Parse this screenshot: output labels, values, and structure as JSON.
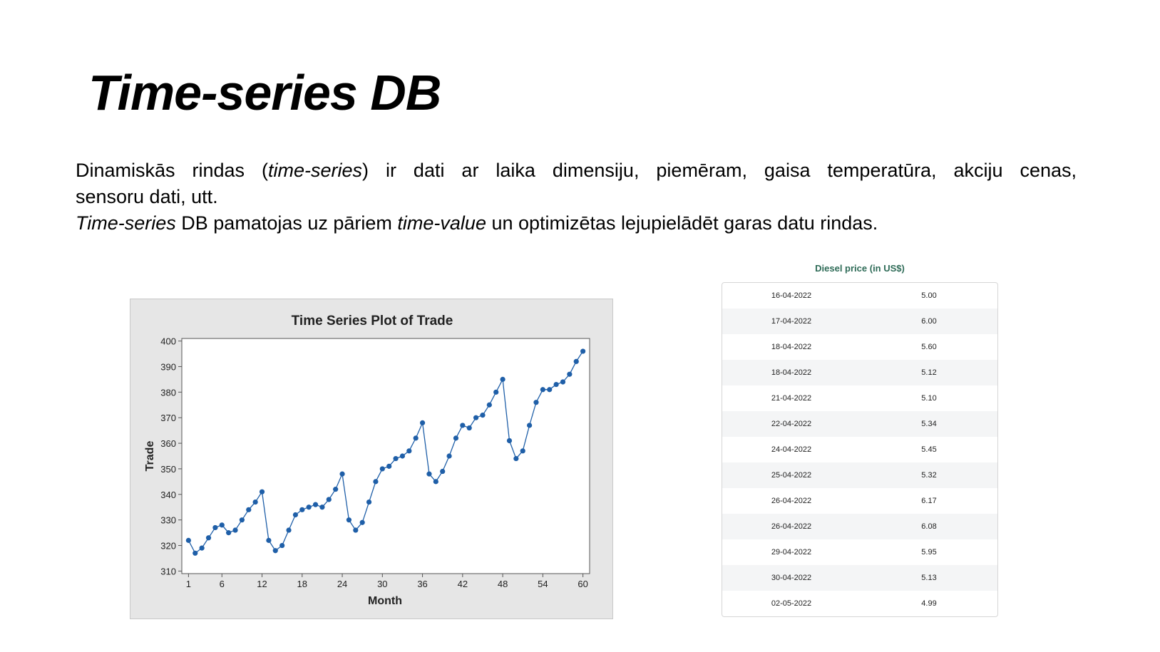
{
  "slide": {
    "title": "Time-series DB",
    "intro": {
      "l1_a": "Dinamiskās rindas (",
      "l1_b": "time-series",
      "l1_c": ") ir dati ar laika dimensiju, piemēram, gaisa temperatūra, akciju cenas,",
      "l2": "sensoru dati, utt.",
      "l3_a": "Time-series",
      "l3_b": " DB pamatojas uz pāriem ",
      "l3_c": "time-value",
      "l3_d": " un optimizētas lejupielādēt garas datu rindas."
    }
  },
  "chart_data": {
    "type": "line",
    "title": "Time Series Plot of Trade",
    "xlabel": "Month",
    "ylabel": "Trade",
    "xlim": [
      0,
      61
    ],
    "ylim": [
      309,
      401
    ],
    "xticks": [
      1,
      6,
      12,
      18,
      24,
      30,
      36,
      42,
      48,
      54,
      60
    ],
    "yticks": [
      310,
      320,
      330,
      340,
      350,
      360,
      370,
      380,
      390,
      400
    ],
    "grid": false,
    "color": "#1f5fa8",
    "x": [
      1,
      2,
      3,
      4,
      5,
      6,
      7,
      8,
      9,
      10,
      11,
      12,
      13,
      14,
      15,
      16,
      17,
      18,
      19,
      20,
      21,
      22,
      23,
      24,
      25,
      26,
      27,
      28,
      29,
      30,
      31,
      32,
      33,
      34,
      35,
      36,
      37,
      38,
      39,
      40,
      41,
      42,
      43,
      44,
      45,
      46,
      47,
      48,
      49,
      50,
      51,
      52,
      53,
      54,
      55,
      56,
      57,
      58,
      59,
      60
    ],
    "values": [
      322,
      317,
      319,
      323,
      327,
      328,
      325,
      326,
      330,
      334,
      337,
      341,
      322,
      318,
      320,
      326,
      332,
      334,
      335,
      336,
      335,
      338,
      342,
      348,
      330,
      326,
      329,
      337,
      345,
      350,
      351,
      354,
      355,
      357,
      362,
      368,
      348,
      345,
      349,
      355,
      362,
      367,
      366,
      370,
      371,
      375,
      380,
      385,
      361,
      354,
      357,
      367,
      376,
      381,
      381,
      383,
      384,
      387,
      392,
      396
    ]
  },
  "table": {
    "title": "Diesel price (in US$)",
    "rows": [
      {
        "date": "16-04-2022",
        "price": "5.00"
      },
      {
        "date": "17-04-2022",
        "price": "6.00"
      },
      {
        "date": "18-04-2022",
        "price": "5.60"
      },
      {
        "date": "18-04-2022",
        "price": "5.12"
      },
      {
        "date": "21-04-2022",
        "price": "5.10"
      },
      {
        "date": "22-04-2022",
        "price": "5.34"
      },
      {
        "date": "24-04-2022",
        "price": "5.45"
      },
      {
        "date": "25-04-2022",
        "price": "5.32"
      },
      {
        "date": "26-04-2022",
        "price": "6.17"
      },
      {
        "date": "26-04-2022",
        "price": "6.08"
      },
      {
        "date": "29-04-2022",
        "price": "5.95"
      },
      {
        "date": "30-04-2022",
        "price": "5.13"
      },
      {
        "date": "02-05-2022",
        "price": "4.99"
      }
    ]
  }
}
